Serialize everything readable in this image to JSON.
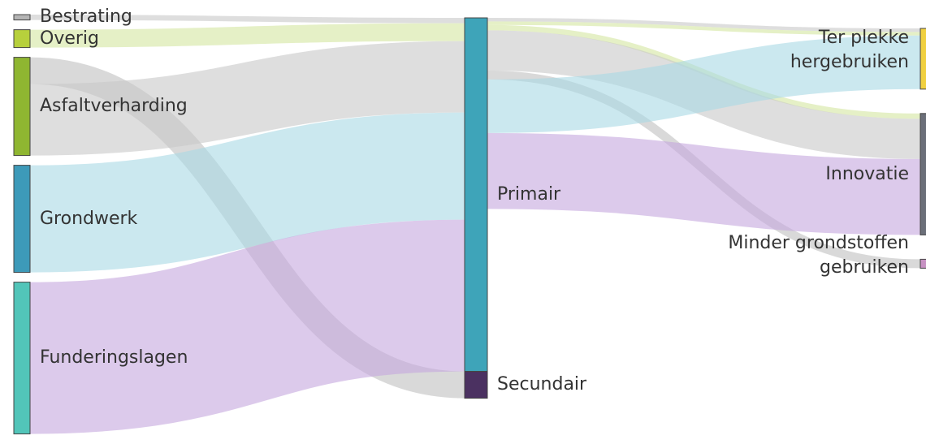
{
  "chart_data": {
    "type": "sankey",
    "nodes": [
      {
        "name": "Bestrating",
        "color": "#b4b4b4"
      },
      {
        "name": "Overig",
        "color": "#b7d03c"
      },
      {
        "name": "Asfaltverharding",
        "color": "#8fb631"
      },
      {
        "name": "Grondwerk",
        "color": "#3d9ab9"
      },
      {
        "name": "Funderingslagen",
        "color": "#52c5b9"
      },
      {
        "name": "Primair",
        "color": "#3ea4b9"
      },
      {
        "name": "Secundair",
        "color": "#4b3161"
      },
      {
        "name": "Ter plekke hergebruiken",
        "color": "#f0d040"
      },
      {
        "name": "Innovatie",
        "color": "#6b6f79"
      },
      {
        "name": "Minder grondstoffen gebruiken",
        "color": "#c792c3"
      }
    ],
    "links": [
      {
        "source": "Bestrating",
        "target": "Primair",
        "value": 6,
        "color": "#c8c8c8"
      },
      {
        "source": "Overig",
        "target": "Primair",
        "value": 20,
        "color": "#d3e6a0"
      },
      {
        "source": "Asfaltverharding",
        "target": "Secundair",
        "value": 30,
        "color": "#c0c0c0"
      },
      {
        "source": "Asfaltverharding",
        "target": "Primair",
        "value": 80,
        "color": "#c8c8c8"
      },
      {
        "source": "Grondwerk",
        "target": "Primair",
        "value": 120,
        "color": "#a9d8e4"
      },
      {
        "source": "Funderingslagen",
        "target": "Primair",
        "value": 170,
        "color": "#c4a7dd"
      },
      {
        "source": "Primair",
        "target": "Ter plekke hergebruiken",
        "value": 4,
        "color": "#c8c8c8"
      },
      {
        "source": "Primair",
        "target": "Ter plekke hergebruiken",
        "value": 4,
        "color": "#d3e6a0"
      },
      {
        "source": "Primair",
        "target": "Innovatie",
        "value": 6,
        "color": "#d3e6a0"
      },
      {
        "source": "Primair",
        "target": "Innovatie",
        "value": 45,
        "color": "#c8c8c8"
      },
      {
        "source": "Primair",
        "target": "Minder grondstoffen gebruiken",
        "value": 10,
        "color": "#c0c0c0"
      },
      {
        "source": "Primair",
        "target": "Ter plekke hergebruiken",
        "value": 60,
        "color": "#a9d8e4"
      },
      {
        "source": "Primair",
        "target": "Innovatie",
        "value": 85,
        "color": "#c4a7dd"
      }
    ]
  }
}
